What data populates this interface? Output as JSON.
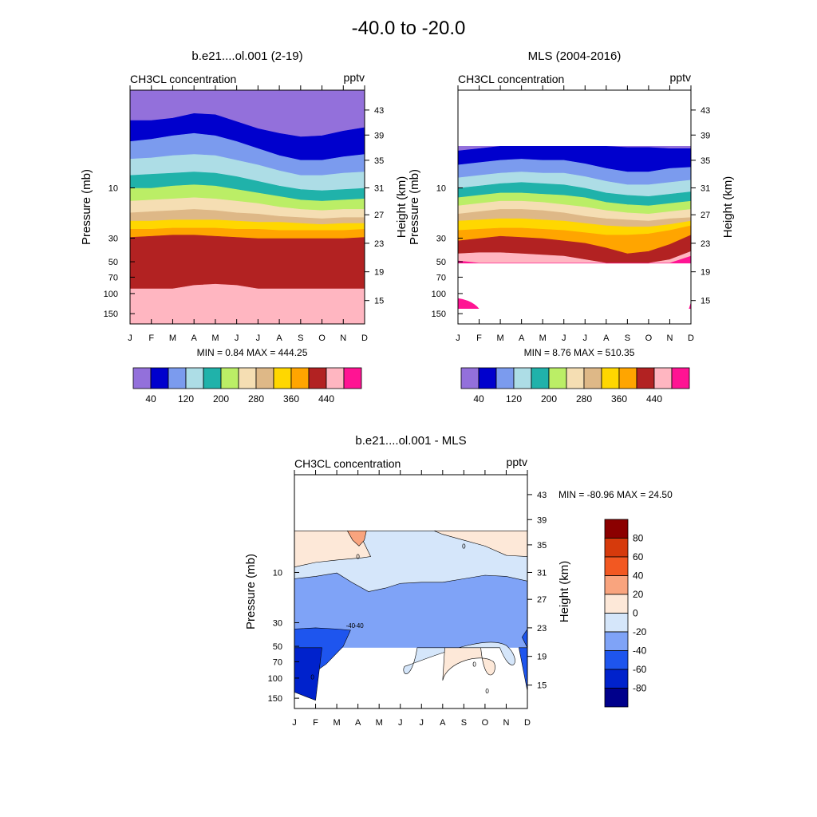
{
  "title": "-40.0 to -20.0",
  "colors": {
    "model_levels": [
      "#9370DB",
      "#0000CD",
      "#7B9BEE",
      "#ADDDE6",
      "#20B2AA",
      "#BBEE66",
      "#F5DEB3",
      "#DEB887",
      "#FFD700",
      "#FFA500",
      "#B22222",
      "#FFB6C1",
      "#FF1493"
    ],
    "diff_levels": [
      "#00008B",
      "#0022CC",
      "#1E55EE",
      "#7FA3F7",
      "#D5E6FA",
      "#FDE8D8",
      "#F9A47E",
      "#F25822",
      "#D63A0C",
      "#8B0000"
    ],
    "line": "#000000"
  },
  "chart_data": [
    {
      "id": "model",
      "type": "contour",
      "title": "b.e21....ol.001 (2-19)",
      "left_label": "CH3CL concentration",
      "right_label": "pptv",
      "xlabel": "",
      "ylabel": "Pressure (mb)",
      "ylabel_right": "Height (km)",
      "x_ticks": [
        "J",
        "F",
        "M",
        "A",
        "M",
        "J",
        "J",
        "A",
        "S",
        "O",
        "N",
        "D"
      ],
      "y_ticks_left": [
        "10",
        "30",
        "50",
        "70",
        "100",
        "150"
      ],
      "y_ticks_right": [
        "43",
        "39",
        "35",
        "31",
        "27",
        "23",
        "19",
        "15"
      ],
      "stats": "MIN =   0.84  MAX = 444.25",
      "contour_levels": [
        40,
        80,
        120,
        160,
        200,
        240,
        280,
        320,
        360,
        400,
        440,
        480
      ],
      "colorbar_labels": [
        "40",
        "120",
        "200",
        "280",
        "360",
        "440"
      ],
      "boundaries": [
        [
          1.3,
          1.3,
          1.2,
          1.0,
          1.05,
          1.35,
          1.65,
          1.85,
          2.0,
          1.95,
          1.75,
          1.6
        ],
        [
          2.2,
          2.1,
          1.95,
          1.85,
          1.95,
          2.2,
          2.5,
          2.8,
          3.0,
          3.0,
          2.85,
          2.75
        ],
        [
          2.95,
          2.9,
          2.8,
          2.75,
          2.8,
          3.0,
          3.2,
          3.45,
          3.65,
          3.65,
          3.55,
          3.5
        ],
        [
          3.65,
          3.6,
          3.55,
          3.5,
          3.55,
          3.7,
          3.9,
          4.1,
          4.25,
          4.3,
          4.25,
          4.2
        ],
        [
          4.2,
          4.2,
          4.1,
          4.05,
          4.1,
          4.25,
          4.4,
          4.55,
          4.7,
          4.75,
          4.7,
          4.65
        ],
        [
          4.75,
          4.7,
          4.65,
          4.6,
          4.65,
          4.75,
          4.85,
          5.0,
          5.1,
          5.15,
          5.1,
          5.1
        ],
        [
          5.25,
          5.2,
          5.15,
          5.1,
          5.15,
          5.25,
          5.3,
          5.4,
          5.45,
          5.5,
          5.45,
          5.45
        ],
        [
          5.6,
          5.6,
          5.55,
          5.55,
          5.55,
          5.6,
          5.65,
          5.65,
          5.7,
          5.75,
          5.7,
          5.7
        ],
        [
          5.95,
          5.95,
          5.9,
          5.9,
          5.9,
          5.95,
          5.95,
          6.0,
          6.0,
          6.0,
          6.0,
          5.95
        ],
        [
          6.3,
          6.25,
          6.2,
          6.2,
          6.25,
          6.3,
          6.35,
          6.35,
          6.35,
          6.35,
          6.35,
          6.3
        ],
        [
          8.5,
          8.5,
          8.5,
          8.35,
          8.3,
          8.35,
          8.5,
          8.5,
          8.5,
          8.5,
          8.5,
          8.5
        ]
      ]
    },
    {
      "id": "mls",
      "type": "contour",
      "title": "MLS (2004-2016)",
      "left_label": "CH3CL concentration",
      "right_label": "pptv",
      "xlabel": "",
      "ylabel": "Pressure (mb)",
      "ylabel_right": "Height (km)",
      "x_ticks": [
        "J",
        "F",
        "M",
        "A",
        "M",
        "J",
        "J",
        "A",
        "S",
        "O",
        "N",
        "D"
      ],
      "y_ticks_left": [
        "10",
        "30",
        "50",
        "70",
        "100",
        "150"
      ],
      "y_ticks_right": [
        "43",
        "39",
        "35",
        "31",
        "27",
        "23",
        "19",
        "15"
      ],
      "stats": "MIN =   8.76  MAX = 510.35",
      "contour_levels": [
        40,
        80,
        120,
        160,
        200,
        240,
        280,
        320,
        360,
        400,
        440,
        480
      ],
      "colorbar_labels": [
        "40",
        "120",
        "200",
        "280",
        "360",
        "440"
      ],
      "data_top": 2.4,
      "data_bottom": 7.4,
      "boundaries": [
        [
          2.6,
          2.5,
          2.4,
          2.4,
          2.4,
          2.4,
          2.4,
          2.4,
          2.45,
          2.45,
          2.5,
          2.5
        ],
        [
          3.2,
          3.1,
          3.0,
          2.95,
          3.0,
          3.0,
          3.15,
          3.35,
          3.5,
          3.5,
          3.35,
          3.3
        ],
        [
          3.75,
          3.65,
          3.55,
          3.5,
          3.55,
          3.55,
          3.7,
          3.9,
          4.05,
          4.05,
          3.95,
          3.85
        ],
        [
          4.2,
          4.1,
          4.0,
          3.95,
          4.0,
          4.05,
          4.2,
          4.4,
          4.5,
          4.55,
          4.45,
          4.35
        ],
        [
          4.6,
          4.5,
          4.4,
          4.4,
          4.45,
          4.5,
          4.6,
          4.8,
          4.9,
          4.95,
          4.85,
          4.75
        ],
        [
          4.95,
          4.85,
          4.75,
          4.75,
          4.8,
          4.9,
          5.0,
          5.15,
          5.25,
          5.3,
          5.2,
          5.1
        ],
        [
          5.3,
          5.2,
          5.1,
          5.1,
          5.15,
          5.25,
          5.4,
          5.5,
          5.55,
          5.6,
          5.5,
          5.45
        ],
        [
          5.6,
          5.55,
          5.5,
          5.5,
          5.55,
          5.6,
          5.7,
          5.8,
          5.85,
          5.85,
          5.75,
          5.6
        ],
        [
          6.0,
          5.95,
          5.9,
          5.9,
          5.95,
          6.0,
          6.1,
          6.2,
          6.2,
          6.15,
          6.0,
          5.8
        ],
        [
          6.45,
          6.35,
          6.25,
          6.3,
          6.35,
          6.45,
          6.55,
          6.75,
          7.0,
          6.9,
          6.6,
          6.2
        ],
        [
          7.0,
          6.95,
          6.95,
          7.0,
          7.05,
          7.1,
          7.25,
          7.4,
          7.4,
          7.4,
          7.25,
          6.9
        ],
        [
          7.3,
          7.4,
          7.4,
          7.4,
          7.4,
          7.4,
          7.4,
          7.4,
          7.4,
          7.4,
          7.4,
          7.1
        ]
      ]
    },
    {
      "id": "diff",
      "type": "contour",
      "title": "b.e21....ol.001 - MLS",
      "left_label": "CH3CL concentration",
      "right_label": "pptv",
      "xlabel": "",
      "ylabel": "Pressure (mb)",
      "ylabel_right": "Height (km)",
      "x_ticks": [
        "J",
        "F",
        "M",
        "A",
        "M",
        "J",
        "J",
        "A",
        "S",
        "O",
        "N",
        "D"
      ],
      "y_ticks_left": [
        "10",
        "30",
        "50",
        "70",
        "100",
        "150"
      ],
      "y_ticks_right": [
        "43",
        "39",
        "35",
        "31",
        "27",
        "23",
        "19",
        "15"
      ],
      "stats": "MIN = -80.96  MAX =  24.50",
      "contour_levels": [
        -80,
        -60,
        -40,
        -20,
        0,
        20,
        40,
        60,
        80
      ],
      "colorbar_labels": [
        "80",
        "60",
        "40",
        "20",
        "0",
        "-20",
        "-40",
        "-60",
        "-80"
      ],
      "contour_line_labels": [
        "0",
        "0",
        "0",
        "-40",
        "0",
        "0",
        "-40"
      ],
      "data_top": 2.4,
      "data_bottom": 7.4
    }
  ]
}
